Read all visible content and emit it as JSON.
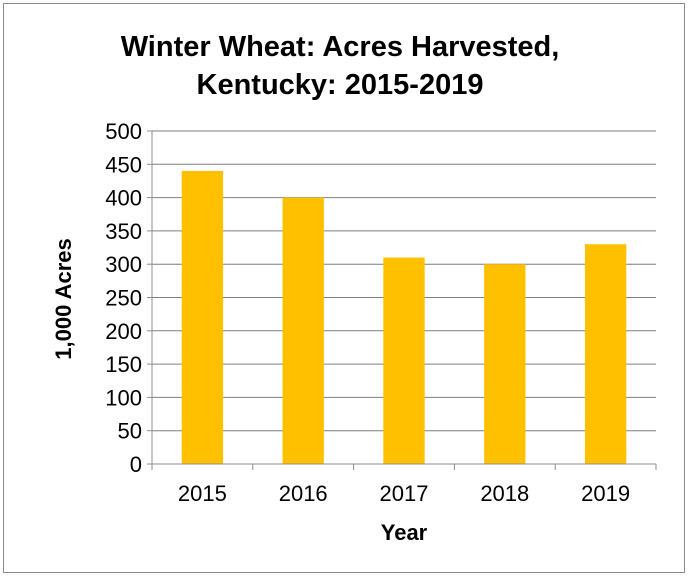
{
  "chart_data": {
    "type": "bar",
    "title_lines": [
      "Winter Wheat: Acres Harvested,",
      "Kentucky: 2015-2019"
    ],
    "xlabel": "Year",
    "ylabel": "1,000 Acres",
    "categories": [
      "2015",
      "2016",
      "2017",
      "2018",
      "2019"
    ],
    "values": [
      440,
      400,
      310,
      300,
      330
    ],
    "ylim": [
      0,
      500
    ],
    "yticks": [
      0,
      50,
      100,
      150,
      200,
      250,
      300,
      350,
      400,
      450,
      500
    ],
    "grid": true,
    "legend": "none",
    "bar_color": "#FFC000",
    "grid_color": "#7f7f7f",
    "axis_color": "#8c8c8c"
  }
}
